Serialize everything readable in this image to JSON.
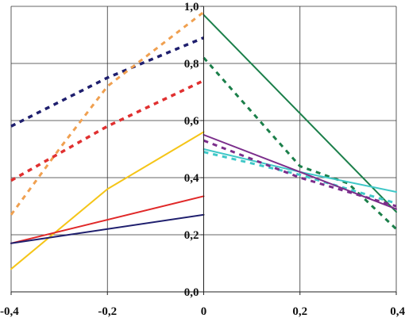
{
  "chart_data": {
    "type": "line",
    "xlim": [
      -0.4,
      0.4
    ],
    "ylim": [
      0.0,
      1.0
    ],
    "x_ticks": [
      {
        "value": -0.4,
        "label": "-0,4"
      },
      {
        "value": -0.2,
        "label": "-0,2"
      },
      {
        "value": 0.0,
        "label": "0"
      },
      {
        "value": 0.2,
        "label": "0,2"
      },
      {
        "value": 0.4,
        "label": "0,4"
      }
    ],
    "y_ticks": [
      {
        "value": 0.0,
        "label": "0,0"
      },
      {
        "value": 0.2,
        "label": "0,2"
      },
      {
        "value": 0.4,
        "label": "0,4"
      },
      {
        "value": 0.6,
        "label": "0,6"
      },
      {
        "value": 0.8,
        "label": "0,8"
      },
      {
        "value": 1.0,
        "label": "1,0"
      }
    ],
    "grid": true,
    "legend": "none",
    "series": [
      {
        "color": "#1f1f6e",
        "style": "dashed",
        "width": 3.5,
        "points": [
          [
            -0.4,
            0.58
          ],
          [
            -0.2,
            0.75
          ],
          [
            0.0,
            0.89
          ]
        ]
      },
      {
        "color": "#f0a050",
        "style": "dashed",
        "width": 3.0,
        "points": [
          [
            -0.4,
            0.27
          ],
          [
            -0.3,
            0.5
          ],
          [
            -0.2,
            0.72
          ],
          [
            0.0,
            0.98
          ]
        ]
      },
      {
        "color": "#e03030",
        "style": "dashed",
        "width": 3.5,
        "points": [
          [
            -0.4,
            0.39
          ],
          [
            -0.2,
            0.58
          ],
          [
            0.0,
            0.74
          ]
        ]
      },
      {
        "color": "#f5c518",
        "style": "solid",
        "width": 2.0,
        "points": [
          [
            -0.4,
            0.08
          ],
          [
            -0.2,
            0.36
          ],
          [
            0.0,
            0.56
          ]
        ]
      },
      {
        "color": "#e02828",
        "style": "solid",
        "width": 2.0,
        "points": [
          [
            -0.4,
            0.17
          ],
          [
            0.0,
            0.335
          ]
        ]
      },
      {
        "color": "#1f1f6e",
        "style": "solid",
        "width": 2.0,
        "points": [
          [
            -0.4,
            0.17
          ],
          [
            0.0,
            0.27
          ]
        ]
      },
      {
        "color": "#1b7f4a",
        "style": "solid",
        "width": 2.0,
        "points": [
          [
            0.0,
            0.97
          ],
          [
            0.4,
            0.28
          ]
        ]
      },
      {
        "color": "#1b7f4a",
        "style": "dashed",
        "width": 3.0,
        "points": [
          [
            0.0,
            0.82
          ],
          [
            0.1,
            0.63
          ],
          [
            0.2,
            0.44
          ],
          [
            0.3,
            0.38
          ],
          [
            0.4,
            0.22
          ]
        ]
      },
      {
        "color": "#40c8c8",
        "style": "solid",
        "width": 2.0,
        "points": [
          [
            0.0,
            0.5
          ],
          [
            0.2,
            0.42
          ],
          [
            0.4,
            0.35
          ]
        ]
      },
      {
        "color": "#40c8c8",
        "style": "dashed",
        "width": 3.0,
        "points": [
          [
            0.0,
            0.49
          ],
          [
            0.2,
            0.41
          ],
          [
            0.4,
            0.31
          ]
        ]
      },
      {
        "color": "#7b2d8b",
        "style": "solid",
        "width": 2.0,
        "points": [
          [
            0.0,
            0.55
          ],
          [
            0.4,
            0.29
          ]
        ]
      },
      {
        "color": "#7b2d8b",
        "style": "dashed",
        "width": 3.0,
        "points": [
          [
            0.0,
            0.53
          ],
          [
            0.2,
            0.4
          ],
          [
            0.4,
            0.3
          ]
        ]
      }
    ]
  }
}
